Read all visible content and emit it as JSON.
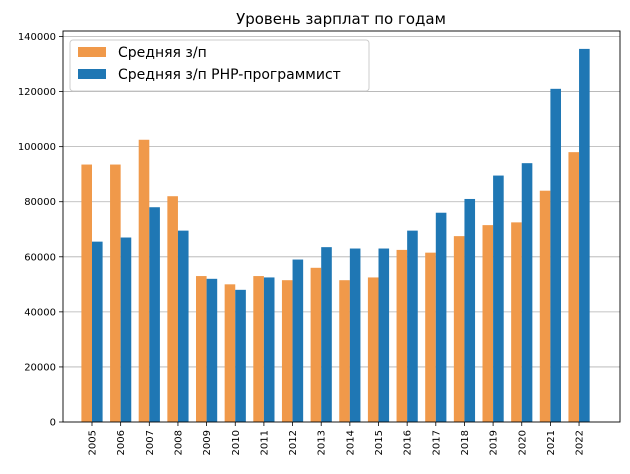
{
  "chart_data": {
    "type": "bar",
    "title": "Уровень зарплат по годам",
    "xlabel": "",
    "ylabel": "",
    "categories": [
      "2005",
      "2006",
      "2007",
      "2008",
      "2009",
      "2010",
      "2011",
      "2012",
      "2013",
      "2014",
      "2015",
      "2016",
      "2017",
      "2018",
      "2019",
      "2020",
      "2021",
      "2022"
    ],
    "series": [
      {
        "name": "Средняя з/п",
        "color": "#f0994a",
        "values": [
          93500,
          93500,
          102500,
          82000,
          53000,
          50000,
          53000,
          51500,
          56000,
          51500,
          52500,
          62500,
          61500,
          67500,
          71500,
          72500,
          84000,
          98000
        ]
      },
      {
        "name": "Средняя з/п PHP-программист",
        "color": "#1f77b4",
        "values": [
          65500,
          67000,
          78000,
          69500,
          52000,
          48000,
          52500,
          59000,
          63500,
          63000,
          63000,
          69500,
          76000,
          81000,
          89500,
          94000,
          121000,
          135500
        ]
      }
    ],
    "ylim": [
      0,
      142000
    ],
    "yticks": [
      0,
      20000,
      40000,
      60000,
      80000,
      100000,
      120000,
      140000
    ],
    "grid": "y",
    "legend": "top-left"
  }
}
